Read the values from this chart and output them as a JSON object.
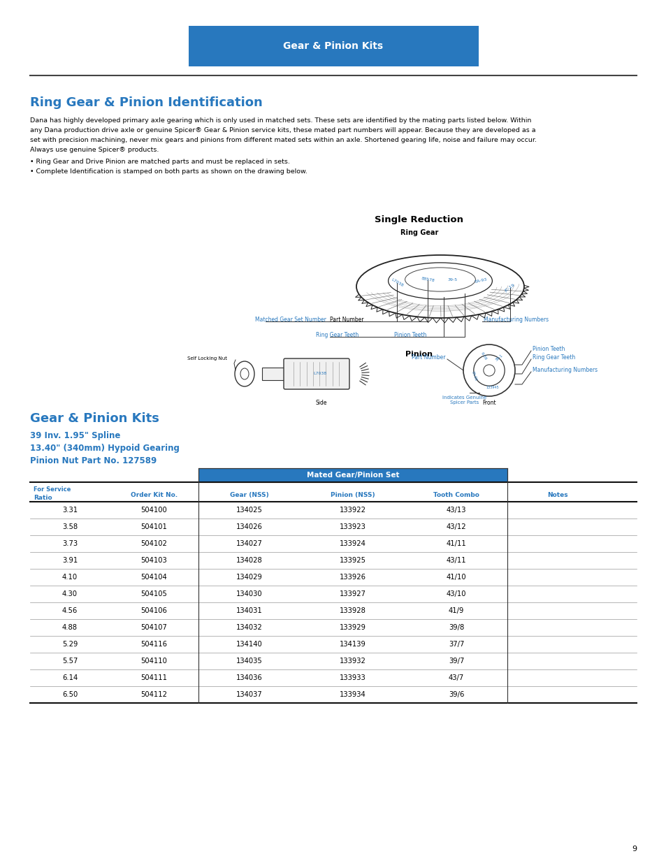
{
  "page_bg": "#ffffff",
  "header_bg": "#2878be",
  "header_text": "Gear & Pinion Kits",
  "header_text_color": "#ffffff",
  "section_title": "Ring Gear & Pinion Identification",
  "section_title_color": "#2878be",
  "body_text_lines": [
    "Dana has highly developed primary axle gearing which is only used in matched sets. These sets are identified by the mating parts listed below. Within",
    "any Dana production drive axle or genuine Spicer® Gear & Pinion service kits, these mated part numbers will appear. Because they are developed as a",
    "set with precision machining, never mix gears and pinions from different mated sets within an axle. Shortened gearing life, noise and failure may occur.",
    "Always use genuine Spicer® products."
  ],
  "bullet1": "• Ring Gear and Drive Pinion are matched parts and must be replaced in sets.",
  "bullet2": "• Complete Identification is stamped on both parts as shown on the drawing below.",
  "single_reduction_title": "Single Reduction",
  "ring_gear_label": "Ring Gear",
  "pinion_label": "Pinion",
  "self_locking_nut": "Self Locking Nut",
  "side_label": "Side",
  "front_label": "Front",
  "matched_gear_set": "Matched Gear Set Number",
  "part_number_rg": "Part Number",
  "ring_gear_teeth": "Ring Gear Teeth",
  "manufacturing_numbers_rg": "Manufacturing Numbers",
  "pinion_teeth_rg": "Pinion Teeth",
  "pinion_teeth_p": "Pinion Teeth",
  "ring_gear_teeth_p": "Ring Gear Teeth",
  "part_number_p": "Part Number",
  "manufacturing_numbers_p": "Manufacturing Numbers",
  "indicates_genuine": "Indicates Genuine\nSpicer Parts",
  "annotation_color": "#2878be",
  "section2_title": "Gear & Pinion Kits",
  "section2_title_color": "#2878be",
  "sub_title_lines": [
    "39 Inv. 1.95\" Spline",
    "13.40\" (340mm) Hypoid Gearing",
    "Pinion Nut Part No. 127589"
  ],
  "sub_title_color": "#2878be",
  "table_header_bg": "#2878be",
  "table_header_color": "#ffffff",
  "table_header_main": "Mated Gear/Pinion Set",
  "table_data": [
    [
      "3.31",
      "504100",
      "134025",
      "133922",
      "43/13",
      ""
    ],
    [
      "3.58",
      "504101",
      "134026",
      "133923",
      "43/12",
      ""
    ],
    [
      "3.73",
      "504102",
      "134027",
      "133924",
      "41/11",
      ""
    ],
    [
      "3.91",
      "504103",
      "134028",
      "133925",
      "43/11",
      ""
    ],
    [
      "4.10",
      "504104",
      "134029",
      "133926",
      "41/10",
      ""
    ],
    [
      "4.30",
      "504105",
      "134030",
      "133927",
      "43/10",
      ""
    ],
    [
      "4.56",
      "504106",
      "134031",
      "133928",
      "41/9",
      ""
    ],
    [
      "4.88",
      "504107",
      "134032",
      "133929",
      "39/8",
      ""
    ],
    [
      "5.29",
      "504116",
      "134140",
      "134139",
      "37/7",
      ""
    ],
    [
      "5.57",
      "504110",
      "134035",
      "133932",
      "39/7",
      ""
    ],
    [
      "6.14",
      "504111",
      "134036",
      "133933",
      "43/7",
      ""
    ],
    [
      "6.50",
      "504112",
      "134037",
      "133934",
      "39/6",
      ""
    ]
  ],
  "page_number": "9",
  "text_color": "#000000"
}
